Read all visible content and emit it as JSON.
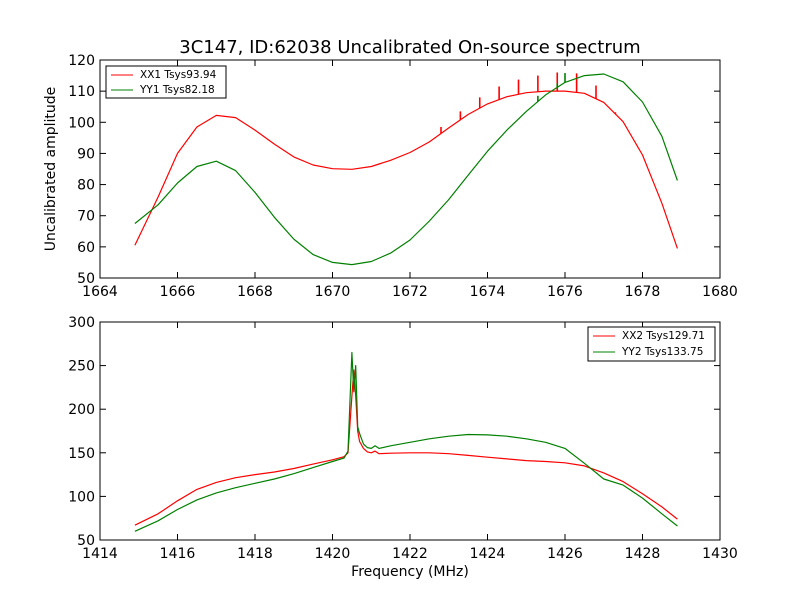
{
  "figure": {
    "title": "3C147, ID:62038 Uncalibrated On-source spectrum"
  },
  "chart_data": [
    {
      "type": "line",
      "ylabel": "Uncalibrated amplitude",
      "xlabel": "",
      "xlim": [
        1664,
        1680
      ],
      "ylim": [
        50,
        120
      ],
      "xticks": [
        "1664",
        "1666",
        "1668",
        "1670",
        "1672",
        "1674",
        "1676",
        "1678",
        "1680"
      ],
      "yticks": [
        "50",
        "60",
        "70",
        "80",
        "90",
        "100",
        "110",
        "120"
      ],
      "legend_position": "top-left",
      "grid": false,
      "series": [
        {
          "name": "XX1 Tsys93.94",
          "color": "#ff0000",
          "x": [
            1664.9,
            1665.5,
            1666.0,
            1666.5,
            1667.0,
            1667.5,
            1668.0,
            1668.5,
            1669.0,
            1669.5,
            1670.0,
            1670.5,
            1671.0,
            1671.5,
            1672.0,
            1672.5,
            1673.0,
            1673.5,
            1674.0,
            1674.5,
            1675.0,
            1675.5,
            1676.0,
            1676.5,
            1677.0,
            1677.5,
            1678.0,
            1678.5,
            1678.9
          ],
          "values": [
            60.5,
            76,
            90,
            98.5,
            102.2,
            101.5,
            97.5,
            93,
            88.9,
            86.3,
            85.1,
            84.9,
            85.8,
            87.8,
            90.3,
            93.7,
            98.2,
            102.5,
            105.9,
            108.2,
            109.5,
            110,
            110,
            109.3,
            106.4,
            100.2,
            89.5,
            74,
            59.5
          ],
          "spikes": [
            [
              1672.8,
              98.5
            ],
            [
              1673.3,
              103.5
            ],
            [
              1673.8,
              108
            ],
            [
              1674.3,
              111.5
            ],
            [
              1674.8,
              113.7
            ],
            [
              1675.3,
              115
            ],
            [
              1675.8,
              116
            ],
            [
              1676.3,
              115.7
            ],
            [
              1676.8,
              111.8
            ],
            [
              1677.3,
              103.2
            ]
          ]
        },
        {
          "name": "YY1 Tsys82.18",
          "color": "#008000",
          "x": [
            1664.9,
            1665.5,
            1666.0,
            1666.5,
            1667.0,
            1667.5,
            1668.0,
            1668.5,
            1669.0,
            1669.5,
            1670.0,
            1670.5,
            1671.0,
            1671.5,
            1672.0,
            1672.5,
            1673.0,
            1673.5,
            1674.0,
            1674.5,
            1675.0,
            1675.5,
            1676.0,
            1676.5,
            1677.0,
            1677.5,
            1678.0,
            1678.5,
            1678.9
          ],
          "values": [
            67.5,
            73.5,
            80.5,
            85.8,
            87.5,
            84.5,
            77.5,
            69.5,
            62.5,
            57.5,
            55,
            54.3,
            55.3,
            58,
            62.2,
            68.3,
            75.2,
            83,
            90.7,
            97.5,
            103.5,
            108.8,
            112.8,
            115,
            115.5,
            113,
            106.5,
            95.5,
            81.3
          ],
          "spikes": [
            [
              1675.3,
              108.5
            ],
            [
              1675.8,
              112.5
            ],
            [
              1676.0,
              115.8
            ]
          ]
        }
      ]
    },
    {
      "type": "line",
      "ylabel": "",
      "xlabel": "Frequency (MHz)",
      "xlim": [
        1414,
        1430
      ],
      "ylim": [
        50,
        300
      ],
      "xticks": [
        "1414",
        "1416",
        "1418",
        "1420",
        "1422",
        "1424",
        "1426",
        "1428",
        "1430"
      ],
      "yticks": [
        "50",
        "100",
        "150",
        "200",
        "250",
        "300"
      ],
      "legend_position": "top-right",
      "grid": false,
      "series": [
        {
          "name": "XX2 Tsys129.71",
          "color": "#ff0000",
          "x": [
            1414.9,
            1415.5,
            1416.0,
            1416.5,
            1417.0,
            1417.5,
            1418.0,
            1418.5,
            1419.0,
            1419.5,
            1420.0,
            1420.3,
            1420.4,
            1420.5,
            1420.55,
            1420.6,
            1420.65,
            1420.7,
            1420.8,
            1420.9,
            1421.0,
            1421.1,
            1421.2,
            1421.5,
            1422.0,
            1422.5,
            1423.0,
            1423.5,
            1424.0,
            1424.5,
            1425.0,
            1425.5,
            1426.0,
            1426.5,
            1427.0,
            1427.5,
            1428.0,
            1428.5,
            1428.9
          ],
          "values": [
            67,
            80,
            95,
            108,
            116,
            121.5,
            125,
            128,
            132,
            137,
            142,
            145.5,
            150,
            215,
            245,
            215,
            175,
            163,
            155,
            151,
            150,
            152,
            149,
            149.5,
            150,
            150,
            149,
            147,
            145,
            143,
            141,
            140,
            138.5,
            135,
            127,
            117,
            103,
            88,
            74
          ]
        },
        {
          "name": "YY2 Tsys133.75",
          "color": "#008000",
          "x": [
            1414.9,
            1415.5,
            1416.0,
            1416.5,
            1417.0,
            1417.5,
            1418.0,
            1418.5,
            1419.0,
            1419.5,
            1420.0,
            1420.3,
            1420.4,
            1420.5,
            1420.55,
            1420.6,
            1420.65,
            1420.7,
            1420.8,
            1420.9,
            1421.0,
            1421.1,
            1421.2,
            1421.5,
            1422.0,
            1422.5,
            1423.0,
            1423.5,
            1424.0,
            1424.5,
            1425.0,
            1425.5,
            1426.0,
            1426.5,
            1427.0,
            1427.5,
            1428.0,
            1428.5,
            1428.9
          ],
          "values": [
            60,
            72,
            85,
            96,
            104,
            110,
            115,
            120,
            126,
            133,
            140,
            144,
            152,
            265,
            220,
            250,
            180,
            172,
            160,
            156,
            155,
            158,
            155,
            158,
            162,
            166,
            169,
            171,
            170.5,
            169,
            166,
            162,
            155,
            138,
            120,
            113,
            98,
            80,
            66
          ]
        }
      ]
    }
  ]
}
